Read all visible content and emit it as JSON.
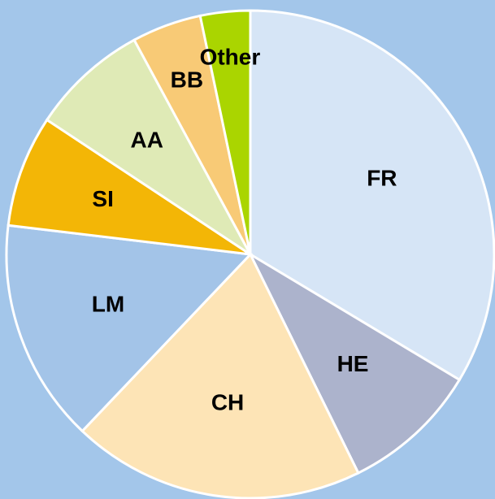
{
  "chart_data": {
    "type": "pie",
    "categories": [
      "FR",
      "HE",
      "CH",
      "LM",
      "SI",
      "AA",
      "BB",
      "Other"
    ],
    "values": [
      33.6,
      9.1,
      19.4,
      14.8,
      7.4,
      7.8,
      4.6,
      3.3
    ],
    "colors": [
      "#d6e5f6",
      "#acb3cc",
      "#fde4b6",
      "#a3c4e8",
      "#f3b606",
      "#dfeab6",
      "#f8ca76",
      "#aad500"
    ],
    "background": "#a3c6ea",
    "start_angle": 0,
    "direction": "clockwise"
  }
}
